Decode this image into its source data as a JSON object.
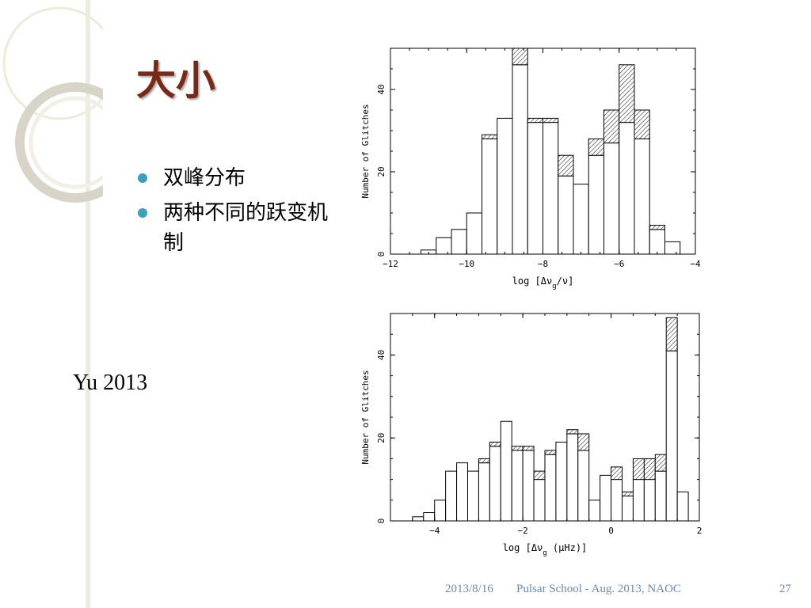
{
  "slide": {
    "title": "大小",
    "bullets": [
      "双峰分布",
      "两种不同的跃变机制"
    ],
    "citation": "Yu 2013",
    "footer": {
      "date": "2013/8/16",
      "event": "Pulsar School  - Aug. 2013, NAOC",
      "page": "27"
    },
    "colors": {
      "title": "#7a2a14",
      "bullet": "#3aa0c0",
      "footer": "#6b89b8"
    }
  },
  "chart_data": [
    {
      "type": "bar",
      "ylabel": "Number of Glitches",
      "xlabel_main": "log [Δν",
      "xlabel_sub": "g",
      "xlabel_tail": "/ν]",
      "xlim": [
        -12,
        -4
      ],
      "ylim": [
        0,
        50
      ],
      "xticks": [
        -12,
        -10,
        -8,
        -6,
        -4
      ],
      "yticks": [
        0,
        20,
        40
      ],
      "bin_width": 0.4,
      "bin_start": [
        -11.2,
        -10.8,
        -10.4,
        -10.0,
        -9.6,
        -9.2,
        -8.8,
        -8.4,
        -8.0,
        -7.6,
        -7.2,
        -6.8,
        -6.4,
        -6.0,
        -5.6,
        -5.2,
        -4.8
      ],
      "series": [
        {
          "values": [
            1,
            4,
            6,
            10,
            28,
            33,
            46,
            32,
            32,
            19,
            17,
            24,
            27,
            32,
            28,
            6,
            3
          ]
        },
        {
          "values": [
            0,
            0,
            0,
            0,
            1,
            0,
            4,
            1,
            1,
            5,
            0,
            4,
            8,
            14,
            7,
            1,
            0
          ]
        }
      ],
      "pattern": "hatched"
    },
    {
      "type": "bar",
      "ylabel": "Number of Glitches",
      "xlabel_main": "log [Δν",
      "xlabel_sub": "g",
      "xlabel_tail": " (μHz)]",
      "xlim": [
        -5,
        2
      ],
      "ylim": [
        0,
        50
      ],
      "xticks": [
        -4,
        -2,
        0,
        2
      ],
      "yticks": [
        0,
        20,
        40
      ],
      "bin_width": 0.25,
      "bin_start": [
        -4.5,
        -4.25,
        -4.0,
        -3.75,
        -3.5,
        -3.25,
        -3.0,
        -2.75,
        -2.5,
        -2.25,
        -2.0,
        -1.75,
        -1.5,
        -1.25,
        -1.0,
        -0.75,
        -0.5,
        -0.25,
        0.0,
        0.25,
        0.5,
        0.75,
        1.0,
        1.25,
        1.5
      ],
      "series": [
        {
          "values": [
            1,
            2,
            5,
            12,
            14,
            12,
            14,
            18,
            24,
            17,
            17,
            10,
            16,
            19,
            21,
            17,
            5,
            11,
            10,
            6,
            10,
            10,
            12,
            41,
            7
          ]
        },
        {
          "values": [
            0,
            0,
            0,
            0,
            0,
            0,
            1,
            1,
            0,
            1,
            1,
            2,
            1,
            0,
            1,
            4,
            0,
            0,
            3,
            1,
            5,
            5,
            4,
            8,
            0
          ]
        }
      ],
      "pattern": "hatched"
    }
  ]
}
